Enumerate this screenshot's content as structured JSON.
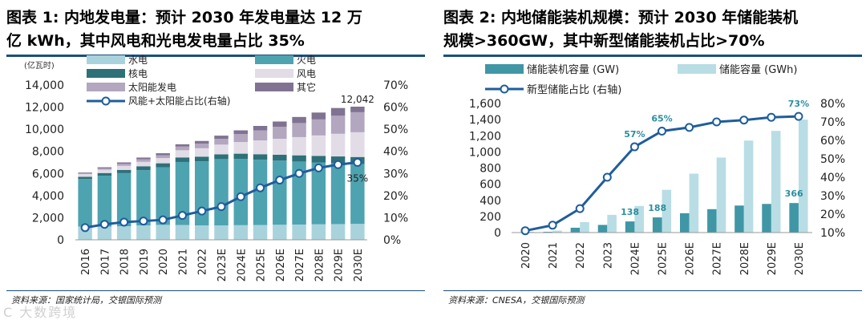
{
  "left": {
    "title_line1": "图表 1: 内地发电量：预计 2030 年发电量达 12 万",
    "title_line2": "亿 kWh，其中风电和光电发电量占比 35%",
    "source": "资料来源：国家统计局，交银国际预测",
    "watermark": "C 大数跨境",
    "colors": {
      "hydro": "#a9d3dc",
      "thermal": "#4ea3b0",
      "nuclear": "#2e7078",
      "wind": "#e2dce6",
      "solar": "#b3a6bf",
      "other": "#807391",
      "line": "#1f5d9c"
    },
    "chart_data": {
      "type": "bar",
      "stacked": true,
      "unit_label": "(亿瓦时)",
      "categories": [
        "2016",
        "2017",
        "2018",
        "2019",
        "2020",
        "2021",
        "2022",
        "2023E",
        "2024E",
        "2025E",
        "2026E",
        "2027E",
        "2028E",
        "2029E",
        "2030E"
      ],
      "series": [
        {
          "name": "水电",
          "key": "hydro",
          "values": [
            1200,
            1200,
            1230,
            1300,
            1350,
            1340,
            1300,
            1300,
            1320,
            1340,
            1360,
            1380,
            1400,
            1420,
            1440
          ]
        },
        {
          "name": "火电",
          "key": "thermal",
          "values": [
            4300,
            4600,
            4800,
            5000,
            5200,
            5700,
            5800,
            6000,
            6000,
            5900,
            5800,
            5700,
            5600,
            5500,
            5400
          ]
        },
        {
          "name": "核电",
          "key": "nuclear",
          "values": [
            200,
            240,
            290,
            350,
            370,
            410,
            420,
            430,
            470,
            500,
            530,
            560,
            590,
            620,
            650
          ]
        },
        {
          "name": "风电",
          "key": "wind",
          "values": [
            240,
            300,
            370,
            400,
            470,
            650,
            760,
            880,
            1050,
            1250,
            1450,
            1650,
            1850,
            2050,
            2240
          ]
        },
        {
          "name": "太阳能发电",
          "key": "solar",
          "values": [
            70,
            120,
            180,
            230,
            260,
            330,
            420,
            530,
            720,
            900,
            1080,
            1270,
            1450,
            1630,
            1810
          ]
        },
        {
          "name": "其它",
          "key": "other",
          "values": [
            70,
            100,
            130,
            160,
            180,
            210,
            240,
            280,
            340,
            410,
            480,
            550,
            620,
            700,
            502
          ]
        }
      ],
      "line": {
        "name": "风能+太阳能占比(右轴)",
        "axis": "right",
        "values": [
          5.5,
          7,
          8,
          8.5,
          9,
          11,
          13,
          15,
          19.5,
          23.5,
          27,
          30,
          32.5,
          34,
          35
        ]
      },
      "ylim": [
        0,
        14000
      ],
      "yticks": [
        "0",
        "2,000",
        "4,000",
        "6,000",
        "8,000",
        "10,000",
        "12,000",
        "14,000"
      ],
      "y2lim": [
        0,
        70
      ],
      "y2ticks": [
        "0%",
        "10%",
        "20%",
        "30%",
        "40%",
        "50%",
        "60%",
        "70%"
      ],
      "annotations": [
        {
          "text": "12,042",
          "category": "2030E"
        },
        {
          "text": "35%",
          "category": "2030E"
        }
      ]
    }
  },
  "right": {
    "title_line1": "图表 2: 内地储能装机规模：预计 2030 年储能装机",
    "title_line2": "规模>360GW，其中新型储能装机占比>70%",
    "source": "资料来源：CNESA，交银国际预测",
    "colors": {
      "capacity": "#3f97a5",
      "storage": "#b9dde4",
      "line": "#1f5d9c",
      "label": "#2a8fa0"
    },
    "chart_data": {
      "type": "bar",
      "categories": [
        "2020",
        "2021",
        "2022",
        "2023",
        "2024E",
        "2025E",
        "2026E",
        "2027E",
        "2028E",
        "2029E",
        "2030E"
      ],
      "series": [
        {
          "name": "储能装机容量 (GW)",
          "key": "capacity",
          "values": [
            5,
            10,
            60,
            95,
            138,
            188,
            240,
            290,
            335,
            355,
            366
          ]
        },
        {
          "name": "储能容量 (GWh)",
          "key": "storage",
          "values": [
            10,
            25,
            130,
            220,
            330,
            530,
            730,
            930,
            1140,
            1260,
            1400
          ]
        }
      ],
      "line": {
        "name": "新型储能占比 (右轴)",
        "axis": "right",
        "values": [
          11,
          14,
          23,
          40,
          56.5,
          65,
          67,
          70,
          71,
          72.5,
          73
        ]
      },
      "ylim": [
        0,
        1600
      ],
      "yticks": [
        "0",
        "200",
        "400",
        "600",
        "800",
        "1,000",
        "1,200",
        "1,400",
        "1,600"
      ],
      "y2lim": [
        10,
        80
      ],
      "y2ticks": [
        "10%",
        "20%",
        "30%",
        "40%",
        "50%",
        "60%",
        "70%",
        "80%"
      ],
      "annotations": [
        {
          "text": "57%",
          "category": "2024E"
        },
        {
          "text": "65%",
          "category": "2025E"
        },
        {
          "text": "73%",
          "category": "2030E"
        },
        {
          "text": "138",
          "category": "2024E"
        },
        {
          "text": "188",
          "category": "2025E"
        },
        {
          "text": "366",
          "category": "2030E"
        }
      ]
    }
  }
}
